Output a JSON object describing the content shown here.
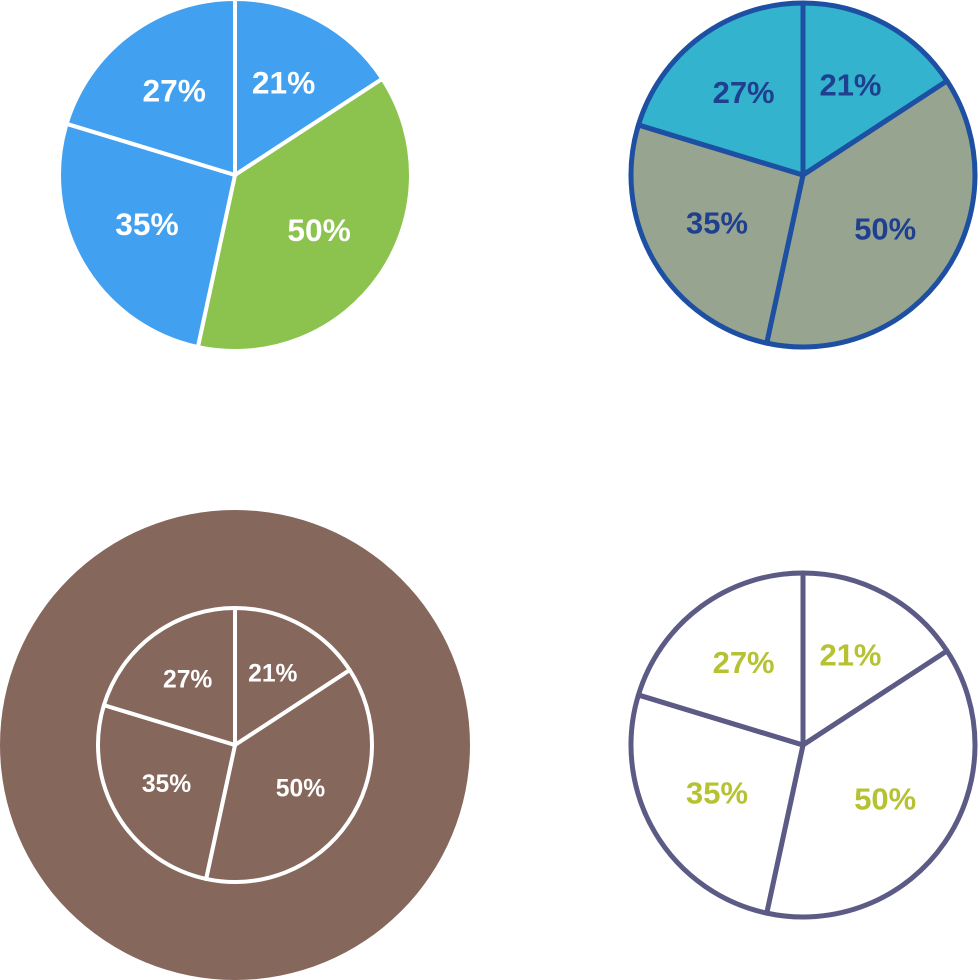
{
  "chart_data": [
    {
      "type": "pie",
      "values": [
        21,
        50,
        35,
        27
      ],
      "value_labels": [
        "21%",
        "50%",
        "35%",
        "27%"
      ],
      "colors": [
        "#42a0f0",
        "#8cc34e",
        "#42a0f0",
        "#42a0f0"
      ],
      "stroke": "#ffffff",
      "label_color": "#ffffff"
    },
    {
      "type": "pie",
      "values": [
        21,
        50,
        35,
        27
      ],
      "value_labels": [
        "21%",
        "50%",
        "35%",
        "27%"
      ],
      "colors": [
        "#33b3cd",
        "#97a590",
        "#97a590",
        "#33b3cd"
      ],
      "stroke": "#1d4fa3",
      "label_color": "#1f3f8f"
    },
    {
      "type": "pie",
      "values": [
        21,
        50,
        35,
        27
      ],
      "value_labels": [
        "21%",
        "50%",
        "35%",
        "27%"
      ],
      "colors": [
        "#85675c",
        "#85675c",
        "#85675c",
        "#85675c"
      ],
      "stroke": "#ffffff",
      "label_color": "#ffffff",
      "background": "#85675c"
    },
    {
      "type": "pie",
      "values": [
        21,
        50,
        35,
        27
      ],
      "value_labels": [
        "21%",
        "50%",
        "35%",
        "27%"
      ],
      "colors": [
        "#ffffff",
        "#ffffff",
        "#ffffff",
        "#ffffff"
      ],
      "stroke": "#5b5b86",
      "label_color": "#b6c232"
    }
  ]
}
